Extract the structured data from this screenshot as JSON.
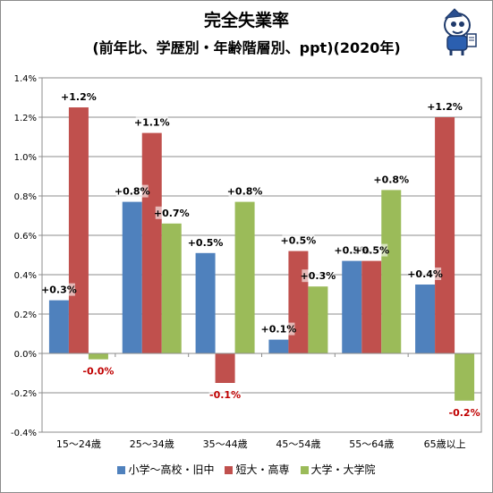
{
  "title": "完全失業率",
  "subtitle": "(前年比、学歴別・年齢階層別、ppt)(2020年)",
  "mascot_icon": "mascot-character-icon",
  "chart_data": {
    "type": "bar",
    "categories": [
      "15〜24歳",
      "25〜34歳",
      "35〜44歳",
      "45〜54歳",
      "55〜64歳",
      "65歳以上"
    ],
    "series": [
      {
        "name": "小学〜高校・旧中",
        "color": "#4f81bd",
        "values": [
          0.27,
          0.77,
          0.51,
          0.07,
          0.47,
          0.35
        ],
        "labels": [
          "+0.3%",
          "+0.8%",
          "+0.5%",
          "+0.1%",
          "+0.5%",
          "+0.4%"
        ]
      },
      {
        "name": "短大・高専",
        "color": "#c0504d",
        "values": [
          1.25,
          1.12,
          -0.15,
          0.52,
          0.47,
          1.2
        ],
        "labels": [
          "+1.2%",
          "+1.1%",
          "-0.1%",
          "+0.5%",
          "+0.5%",
          "+1.2%"
        ]
      },
      {
        "name": "大学・大学院",
        "color": "#9bbb59",
        "values": [
          -0.03,
          0.66,
          0.77,
          0.34,
          0.83,
          -0.24
        ],
        "labels": [
          "-0.0%",
          "+0.7%",
          "+0.8%",
          "+0.3%",
          "+0.8%",
          "-0.2%"
        ]
      }
    ],
    "ylim": [
      -0.4,
      1.4
    ],
    "yticks": [
      -0.4,
      -0.2,
      0.0,
      0.2,
      0.4,
      0.6,
      0.8,
      1.0,
      1.2,
      1.4
    ],
    "ytick_labels": [
      "-0.4%",
      "-0.2%",
      "0.0%",
      "0.2%",
      "0.4%",
      "0.6%",
      "0.8%",
      "1.0%",
      "1.2%",
      "1.4%"
    ],
    "grid": true,
    "legend_position": "bottom",
    "negative_label_color": "#c00000"
  }
}
